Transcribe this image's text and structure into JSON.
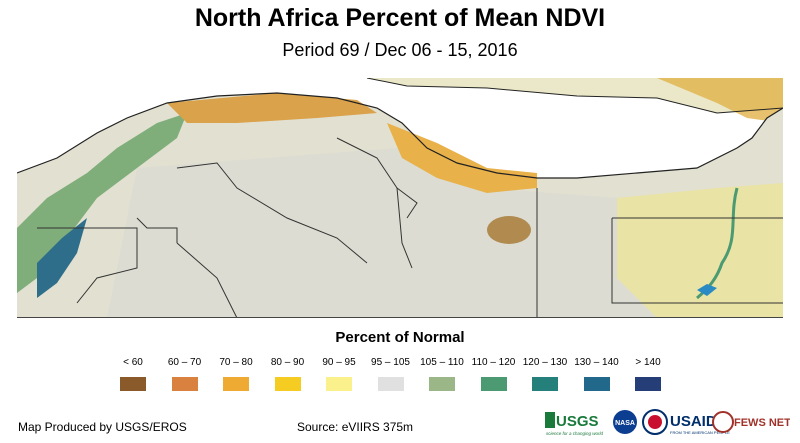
{
  "header": {
    "title": "North Africa Percent of Mean NDVI",
    "subtitle": "Period 69 / Dec 06 - 15, 2016"
  },
  "legend": {
    "title": "Percent of Normal",
    "items": [
      {
        "label": "< 60",
        "color": "#8b5a2b"
      },
      {
        "label": "60 – 70",
        "color": "#d9823f"
      },
      {
        "label": "70 – 80",
        "color": "#eeaa33"
      },
      {
        "label": "80 – 90",
        "color": "#f5cc22"
      },
      {
        "label": "90 – 95",
        "color": "#faf08c"
      },
      {
        "label": "95 – 105",
        "color": "#e0e0e0"
      },
      {
        "label": "105 – 110",
        "color": "#9cb787"
      },
      {
        "label": "110 – 120",
        "color": "#4c9a72"
      },
      {
        "label": "120 – 130",
        "color": "#257f7a"
      },
      {
        "label": "130 – 140",
        "color": "#22688a"
      },
      {
        "label": "> 140",
        "color": "#253e78"
      }
    ]
  },
  "footer": {
    "produced_by": "Map Produced by USGS/EROS",
    "source": "Source: eVIIRS 375m"
  },
  "logos": {
    "usgs": "USGS",
    "usgs_tagline": "science for a changing world",
    "nasa": "NASA",
    "usaid": "USAID",
    "usaid_tagline": "FROM THE AMERICAN PEOPLE",
    "fewsnet": "FEWS NET"
  }
}
